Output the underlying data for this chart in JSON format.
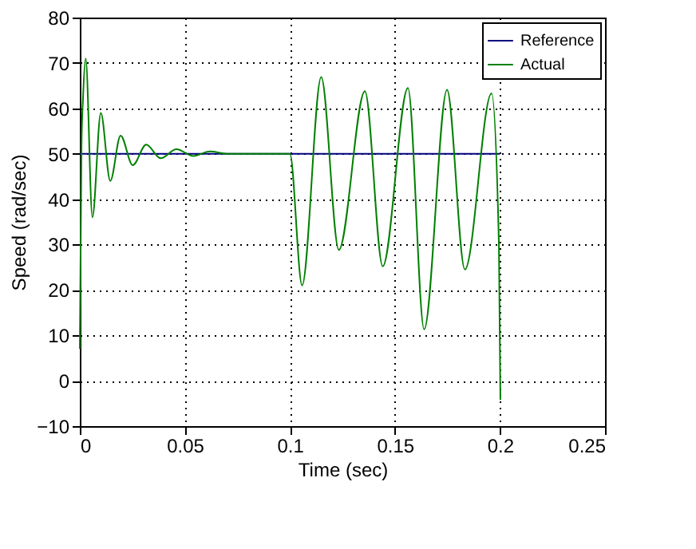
{
  "chart_data": {
    "type": "line",
    "xlabel": "Time (sec)",
    "ylabel": "Speed (rad/sec)",
    "xlim": [
      0,
      0.25
    ],
    "xticks": [
      0,
      0.05,
      0.1,
      0.15,
      0.2,
      0.25
    ],
    "ylim": [
      -10,
      80
    ],
    "yticks": [
      -10,
      0,
      10,
      20,
      30,
      40,
      50,
      60,
      70,
      80
    ],
    "grid": true,
    "legend": "top right",
    "line_style": "solid",
    "marker": "none",
    "series": [
      {
        "name": "Reference",
        "color": "#000080",
        "x": [
          0,
          0.2
        ],
        "values": [
          50,
          50
        ]
      },
      {
        "name": "Actual",
        "color": "#008000",
        "x": [
          0,
          0.0008,
          0.0015,
          0.0028,
          0.006,
          0.01,
          0.0145,
          0.0194,
          0.0252,
          0.0316,
          0.0385,
          0.046,
          0.054,
          0.062,
          0.07,
          0.1,
          0.1058,
          0.1149,
          0.1233,
          0.1357,
          0.1442,
          0.1562,
          0.1639,
          0.1748,
          0.1833,
          0.196,
          0.1995,
          0.2002
        ],
        "values": [
          7,
          52,
          62,
          71,
          36,
          59,
          44,
          54,
          47.5,
          52,
          49,
          51,
          49.5,
          50.5,
          50,
          50,
          21,
          66.9,
          28.8,
          63.8,
          25.2,
          64.5,
          11.3,
          64.1,
          24.5,
          63.3,
          30,
          -4.2
        ]
      }
    ]
  }
}
